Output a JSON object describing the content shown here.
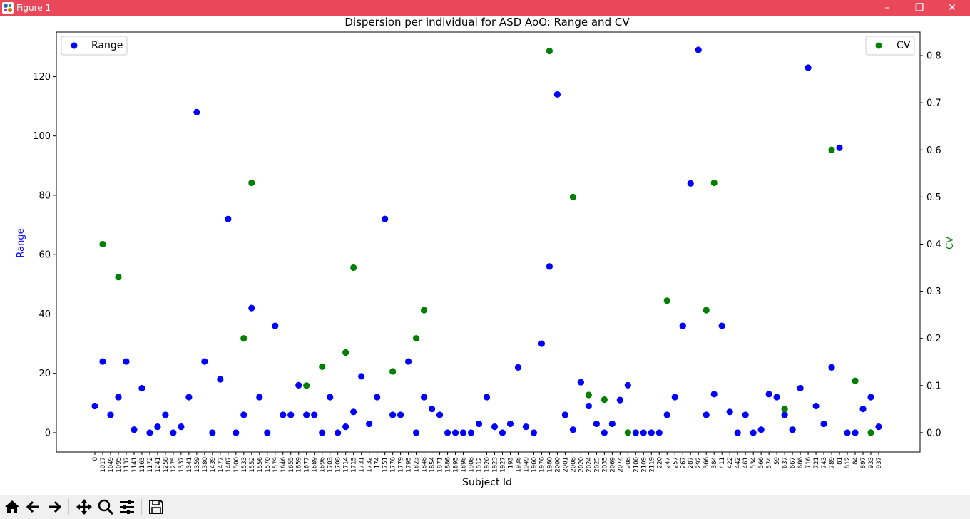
{
  "window": {
    "title": "Figure 1",
    "controls": {
      "minimize": "–",
      "maximize": "❐",
      "close": "✕"
    },
    "titlebar_color": "#e8485a"
  },
  "toolbar": {
    "buttons": [
      {
        "name": "home-button",
        "icon": "home-icon"
      },
      {
        "name": "back-button",
        "icon": "arrow-left-icon"
      },
      {
        "name": "forward-button",
        "icon": "arrow-right-icon"
      },
      {
        "name": "pan-button",
        "icon": "move-icon"
      },
      {
        "name": "zoom-button",
        "icon": "zoom-icon"
      },
      {
        "name": "configure-subplots-button",
        "icon": "sliders-icon"
      },
      {
        "name": "save-button",
        "icon": "save-icon"
      }
    ]
  },
  "chart_data": {
    "type": "scatter",
    "title": "Dispersion per individual for ASD AoO: Range and CV",
    "xlabel": "Subject Id",
    "ylabel": "Range",
    "y2label": "CV",
    "ylim": [
      -6.5,
      135
    ],
    "y2lim": [
      -0.041,
      0.85
    ],
    "y_ticks": [
      0,
      20,
      40,
      60,
      80,
      100,
      120
    ],
    "y2_ticks": [
      0.0,
      0.1,
      0.2,
      0.3,
      0.4,
      0.5,
      0.6,
      0.7,
      0.8
    ],
    "grid": false,
    "legends": [
      {
        "series": "Range",
        "placement": "upper left"
      },
      {
        "series": "CV",
        "placement": "upper right"
      }
    ],
    "categories": [
      "0",
      "1017",
      "1049",
      "1095",
      "1137",
      "1141",
      "1163",
      "1172",
      "1241",
      "1258",
      "1275",
      "1337",
      "1341",
      "1359",
      "1380",
      "1439",
      "1477",
      "1487",
      "1500",
      "1533",
      "1552",
      "1556",
      "1570",
      "1579",
      "1646",
      "1655",
      "1659",
      "1677",
      "1689",
      "1696",
      "1703",
      "1708",
      "1714",
      "1715",
      "1731",
      "1732",
      "174",
      "1751",
      "1776",
      "1779",
      "1795",
      "1823",
      "1848",
      "1854",
      "1871",
      "1886",
      "1895",
      "1898",
      "1908",
      "1912",
      "1920",
      "1923",
      "1927",
      "193",
      "1938",
      "1949",
      "1960",
      "1976",
      "1980",
      "2000",
      "2001",
      "2008",
      "2020",
      "2024",
      "2025",
      "2035",
      "2069",
      "2074",
      "208",
      "2106",
      "2109",
      "2119",
      "220",
      "247",
      "257",
      "267",
      "287",
      "292",
      "366",
      "384",
      "411",
      "422",
      "442",
      "461",
      "534",
      "566",
      "574",
      "59",
      "637",
      "667",
      "686",
      "716",
      "721",
      "743",
      "789",
      "81",
      "812",
      "84",
      "897",
      "933",
      "937"
    ],
    "series": [
      {
        "name": "Range",
        "axis": "left",
        "color": "#0000ff",
        "values": [
          9,
          24,
          6,
          12,
          24,
          1,
          15,
          0,
          2,
          6,
          0,
          2,
          12,
          108,
          24,
          0,
          18,
          72,
          0,
          6,
          42,
          12,
          0,
          36,
          6,
          6,
          16,
          6,
          6,
          0,
          12,
          0,
          2,
          7,
          19,
          3,
          12,
          72,
          6,
          6,
          24,
          0,
          12,
          8,
          6,
          0,
          0,
          0,
          0,
          3,
          12,
          2,
          0,
          3,
          22,
          2,
          0,
          30,
          56,
          114,
          6,
          1,
          17,
          9,
          3,
          0,
          3,
          11,
          16,
          0,
          0,
          0,
          0,
          6,
          12,
          36,
          84,
          129,
          6,
          13,
          36,
          7,
          0,
          6,
          0,
          1,
          13,
          12,
          6,
          1,
          15,
          123,
          9,
          3,
          22,
          96,
          0,
          0,
          8,
          12,
          2
        ]
      },
      {
        "name": "CV",
        "axis": "right",
        "color": "#008000",
        "points": [
          [
            "1017",
            0.4
          ],
          [
            "1095",
            0.33
          ],
          [
            "1533",
            0.2
          ],
          [
            "1552",
            0.53
          ],
          [
            "1677",
            0.1
          ],
          [
            "1696",
            0.14
          ],
          [
            "1714",
            0.17
          ],
          [
            "1715",
            0.35
          ],
          [
            "1776",
            0.13
          ],
          [
            "1823",
            0.2
          ],
          [
            "1848",
            0.26
          ],
          [
            "1980",
            0.81
          ],
          [
            "2008",
            0.5
          ],
          [
            "2024",
            0.08
          ],
          [
            "2035",
            0.07
          ],
          [
            "208",
            0.0
          ],
          [
            "247",
            0.28
          ],
          [
            "366",
            0.26
          ],
          [
            "384",
            0.53
          ],
          [
            "637",
            0.05
          ],
          [
            "789",
            0.6
          ],
          [
            "84",
            0.11
          ],
          [
            "933",
            0.0
          ]
        ]
      }
    ]
  }
}
